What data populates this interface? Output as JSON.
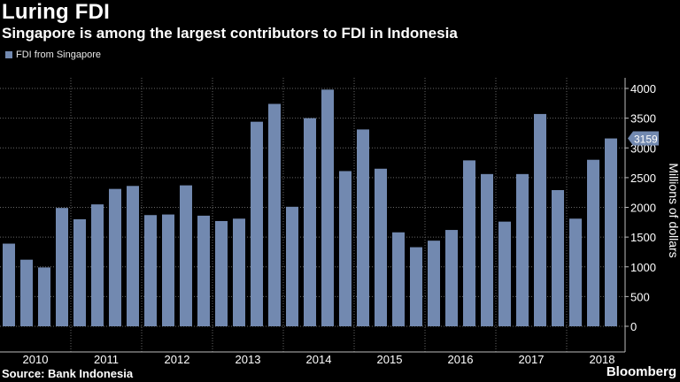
{
  "header": {
    "title": "Luring FDI",
    "subtitle": "Singapore is among the largest contributors to FDI in Indonesia"
  },
  "colors": {
    "bar": "#7289b0",
    "background": "#000000",
    "grid": "#666666",
    "text": "#ffffff"
  },
  "footer": {
    "source": "Source: Bank Indonesia",
    "brand": "Bloomberg"
  },
  "chart_data": {
    "type": "bar",
    "title": "Luring FDI",
    "subtitle": "Singapore is among the largest contributors to FDI in Indonesia",
    "xlabel": "",
    "ylabel": "Millions of dollars",
    "ylim": [
      0,
      4000
    ],
    "yticks": [
      0,
      500,
      1000,
      1500,
      2000,
      2500,
      3000,
      3500,
      4000
    ],
    "grid": true,
    "legend_position": "top-left",
    "year_labels": [
      "2010",
      "2011",
      "2012",
      "2013",
      "2014",
      "2015",
      "2016",
      "2017",
      "2018"
    ],
    "callout": {
      "value": "3159",
      "series": "FDI from Singapore"
    },
    "categories": [
      "2010 Q1",
      "2010 Q2",
      "2010 Q3",
      "2010 Q4",
      "2011 Q1",
      "2011 Q2",
      "2011 Q3",
      "2011 Q4",
      "2012 Q1",
      "2012 Q2",
      "2012 Q3",
      "2012 Q4",
      "2013 Q1",
      "2013 Q2",
      "2013 Q3",
      "2013 Q4",
      "2014 Q1",
      "2014 Q2",
      "2014 Q3",
      "2014 Q4",
      "2015 Q1",
      "2015 Q2",
      "2015 Q3",
      "2015 Q4",
      "2016 Q1",
      "2016 Q2",
      "2016 Q3",
      "2016 Q4",
      "2017 Q1",
      "2017 Q2",
      "2017 Q3",
      "2017 Q4",
      "2018 Q1",
      "2018 Q2",
      "2018 Q3"
    ],
    "series": [
      {
        "name": "FDI from Singapore",
        "values": [
          1390,
          1120,
          990,
          1990,
          1800,
          2050,
          2310,
          2360,
          1870,
          1880,
          2370,
          1860,
          1770,
          1810,
          3440,
          3740,
          2010,
          3500,
          3980,
          2610,
          3310,
          2650,
          1580,
          1330,
          1440,
          1620,
          2790,
          2560,
          1760,
          2560,
          3570,
          2290,
          1810,
          2800,
          3159
        ]
      }
    ]
  }
}
